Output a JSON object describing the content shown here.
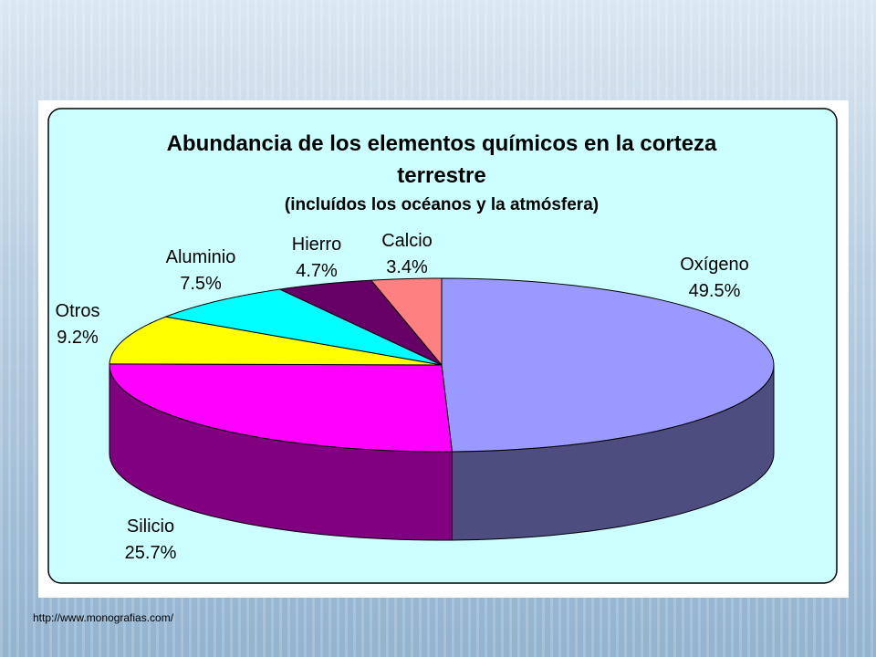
{
  "chart_data": {
    "type": "pie3d",
    "title": "Abundancia de los elementos químicos en la corteza terrestre",
    "subtitle": "(incluídos los océanos y la atmósfera)",
    "categories": [
      "Oxígeno",
      "Silicio",
      "Otros",
      "Aluminio",
      "Hierro",
      "Calcio"
    ],
    "values": [
      49.5,
      25.7,
      9.2,
      7.5,
      4.7,
      3.4
    ],
    "value_labels": [
      "49.5%",
      "25.7%",
      "9.2%",
      "7.5%",
      "4.7%",
      "3.4%"
    ],
    "colors": [
      "#9999ff",
      "#ff00ff",
      "#ffff00",
      "#00ffff",
      "#660066",
      "#ff8080"
    ],
    "source": "http://www.monografias.com/"
  }
}
